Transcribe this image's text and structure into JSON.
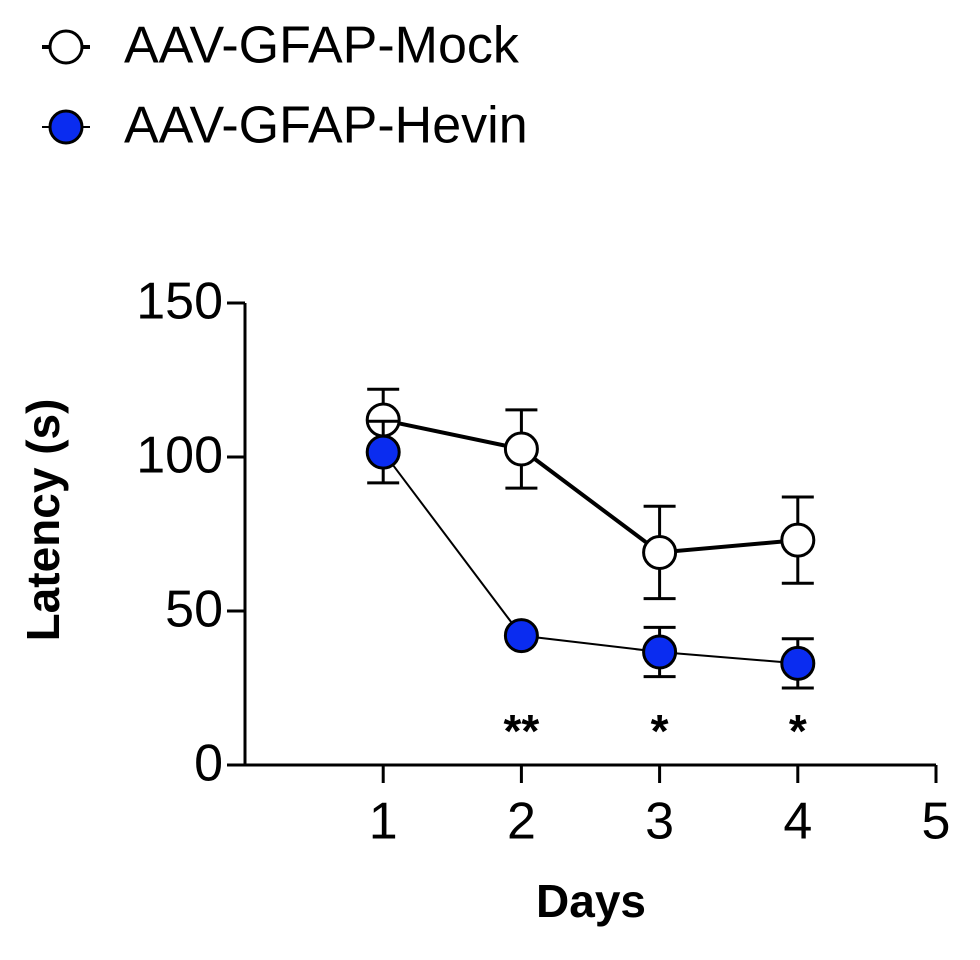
{
  "chart_data": {
    "type": "line",
    "y_label": "Latency (s)",
    "x_label": "Days",
    "x": [
      1,
      2,
      3,
      4
    ],
    "series": [
      {
        "name": "AAV-GFAP-Mock",
        "color": "#ffffff",
        "line_width": 4,
        "values": [
          112,
          102.6,
          69,
          73
        ],
        "errors": [
          10,
          12.7,
          15,
          14
        ]
      },
      {
        "name": "AAV-GFAP-Hevin",
        "color": "#0a2cf0",
        "line_width": 2,
        "values": [
          101.6,
          42,
          36.7,
          33
        ],
        "errors": [
          10,
          1,
          8,
          8
        ]
      }
    ],
    "annotations": [
      {
        "text": "**",
        "x": 2
      },
      {
        "text": "*",
        "x": 3
      },
      {
        "text": "*",
        "x": 4
      }
    ],
    "xlim": [
      0,
      5
    ],
    "xticks": [
      1,
      2,
      3,
      4,
      5
    ],
    "ylim": [
      0,
      150
    ],
    "yticks": [
      0,
      50,
      100,
      150
    ],
    "legend": "top-left",
    "grid": false
  }
}
